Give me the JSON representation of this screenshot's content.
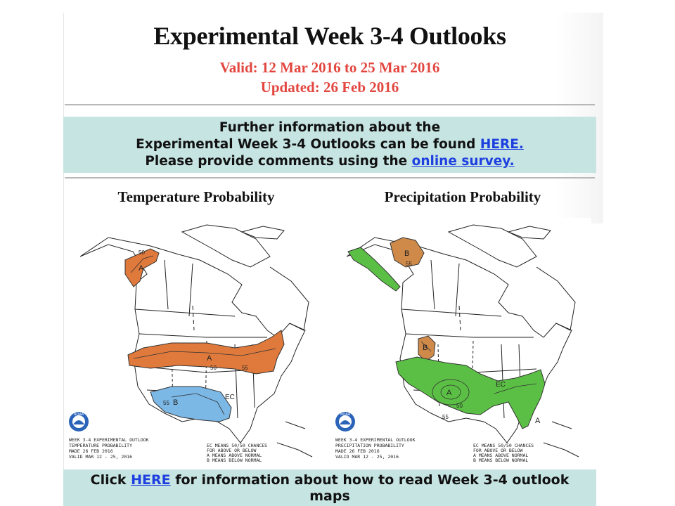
{
  "header": {
    "title": "Experimental Week 3-4 Outlooks",
    "valid": "Valid: 12 Mar 2016 to 25 Mar 2016",
    "updated": "Updated: 26 Feb 2016"
  },
  "info": {
    "line1": "Further information about the",
    "line2_prefix": "Experimental Week 3-4 Outlooks can be found ",
    "line2_link": "HERE.",
    "line3_prefix": "Please provide comments using the ",
    "line3_link": "online survey."
  },
  "maps": {
    "temperature": {
      "title": "Temperature Probability",
      "caption": [
        "WEEK 3-4 EXPERIMENTAL OUTLOOK",
        "TEMPERATURE PROBABILITY",
        "MADE  26 FEB 2016",
        "VALID  MAR 12 - 25, 2016"
      ],
      "legend": [
        "EC MEANS 50/50 CHANCES",
        "FOR ABOVE OR BELOW",
        "A MEANS ABOVE NORMAL",
        "B MEANS BELOW NORMAL"
      ],
      "labels": {
        "above": "A",
        "below": "B",
        "ec": "EC",
        "c50": "50",
        "c55": "55"
      }
    },
    "precipitation": {
      "title": "Precipitation Probability",
      "caption": [
        "WEEK 3-4 EXPERIMENTAL OUTLOOK",
        "PRECIPITATION PROBABILITY",
        "MADE  26 FEB 2016",
        "VALID  MAR 12 - 25, 2016"
      ],
      "legend": [
        "EC MEANS 50/50 CHANCES",
        "FOR ABOVE OR BELOW",
        "A MEANS ABOVE NORMAL",
        "B MEANS BELOW NORMAL"
      ],
      "labels": {
        "above": "A",
        "below": "B",
        "ec": "EC",
        "c50": "50",
        "c55": "55"
      }
    },
    "logo_text": "NOAA",
    "colors": {
      "warm": "#e07a3c",
      "cool": "#7cb8e6",
      "wet": "#5bbf45",
      "dry": "#cf8a4a"
    }
  },
  "footer": {
    "prefix": "Click ",
    "link": "HERE",
    "suffix": " for information about how to read Week 3-4 outlook",
    "line2": "maps"
  }
}
